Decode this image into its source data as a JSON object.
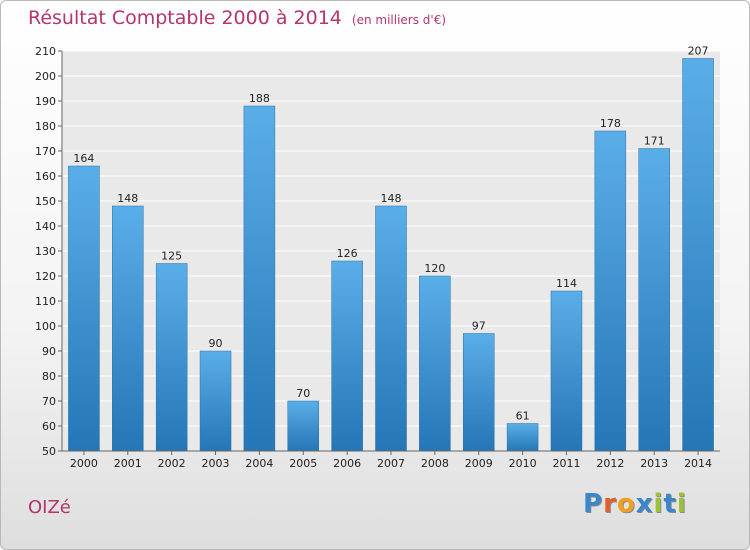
{
  "chart_data": {
    "type": "bar",
    "title": "Résultat Comptable 2000 à 2014",
    "subtitle": "(en milliers d'€)",
    "categories": [
      "2000",
      "2001",
      "2002",
      "2003",
      "2004",
      "2005",
      "2006",
      "2007",
      "2008",
      "2009",
      "2010",
      "2011",
      "2012",
      "2013",
      "2014"
    ],
    "values": [
      164,
      148,
      125,
      90,
      188,
      70,
      126,
      148,
      120,
      97,
      61,
      114,
      178,
      171,
      207
    ],
    "ylim": [
      50,
      210
    ],
    "yticks": [
      50,
      60,
      70,
      80,
      90,
      100,
      110,
      120,
      130,
      140,
      150,
      160,
      170,
      180,
      190,
      200,
      210
    ],
    "grid": true,
    "bar_color": "#3a8fd4",
    "title_color": "#b5346e"
  },
  "commune": "OIZé",
  "logo": {
    "text": "Proxiti",
    "letters": [
      {
        "ch": "P",
        "color": "#3a86c8"
      },
      {
        "ch": "r",
        "color": "#e0602b"
      },
      {
        "ch": "o",
        "color": "#f0a020"
      },
      {
        "ch": "x",
        "color": "#3a86c8"
      },
      {
        "ch": "i",
        "color": "#9bc23a"
      },
      {
        "ch": "t",
        "color": "#3a86c8"
      },
      {
        "ch": "i",
        "color": "#9bc23a"
      }
    ]
  }
}
